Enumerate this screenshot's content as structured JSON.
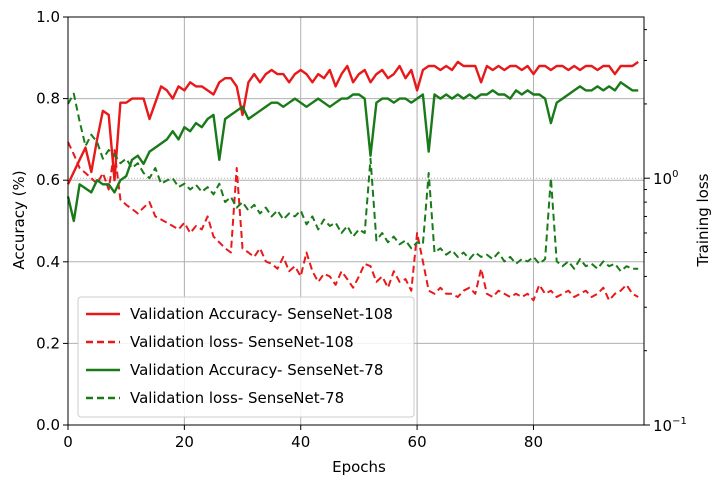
{
  "chart_data": {
    "type": "line",
    "xlabel": "Epochs",
    "ylabel": "Accuracy (%)",
    "y2label": "Training loss",
    "xlim": [
      0,
      99
    ],
    "ylim": [
      0.0,
      1.0
    ],
    "y2lim": [
      0.1,
      4.5
    ],
    "y2scale": "log",
    "grid": true,
    "legend_position": "lower-left",
    "x_ticks": [
      "0",
      "20",
      "40",
      "60",
      "80"
    ],
    "y_ticks": [
      "0.0",
      "0.2",
      "0.4",
      "0.6",
      "0.8",
      "1.0"
    ],
    "y2_ticks": [
      {
        "value": 0.1,
        "base": "10",
        "exp": "−1"
      },
      {
        "value": 1,
        "base": "10",
        "exp": "0"
      }
    ],
    "series": [
      {
        "name": "Validation Accuracy- SenseNet-108",
        "color": "#e8191b",
        "style": "solid",
        "axis": "left",
        "values": [
          0.59,
          0.62,
          0.65,
          0.68,
          0.62,
          0.7,
          0.77,
          0.76,
          0.6,
          0.79,
          0.79,
          0.8,
          0.8,
          0.8,
          0.75,
          0.79,
          0.83,
          0.82,
          0.8,
          0.83,
          0.82,
          0.84,
          0.83,
          0.83,
          0.82,
          0.81,
          0.84,
          0.85,
          0.85,
          0.83,
          0.76,
          0.84,
          0.86,
          0.84,
          0.86,
          0.87,
          0.86,
          0.86,
          0.84,
          0.86,
          0.87,
          0.86,
          0.84,
          0.86,
          0.85,
          0.87,
          0.83,
          0.86,
          0.88,
          0.84,
          0.86,
          0.87,
          0.84,
          0.86,
          0.87,
          0.85,
          0.86,
          0.88,
          0.85,
          0.87,
          0.82,
          0.87,
          0.88,
          0.88,
          0.87,
          0.88,
          0.87,
          0.89,
          0.88,
          0.88,
          0.88,
          0.84,
          0.88,
          0.87,
          0.88,
          0.87,
          0.88,
          0.88,
          0.87,
          0.88,
          0.86,
          0.88,
          0.88,
          0.87,
          0.88,
          0.88,
          0.87,
          0.88,
          0.87,
          0.88,
          0.88,
          0.87,
          0.88,
          0.88,
          0.86,
          0.88,
          0.88,
          0.88,
          0.89
        ]
      },
      {
        "name": "Validation loss- SenseNet-108",
        "color": "#e8191b",
        "style": "dashed",
        "axis": "right",
        "values": [
          1.4,
          1.25,
          1.1,
          1.05,
          1.0,
          0.95,
          1.05,
          0.9,
          1.3,
          0.82,
          0.78,
          0.75,
          0.72,
          0.76,
          0.8,
          0.7,
          0.68,
          0.66,
          0.64,
          0.62,
          0.66,
          0.6,
          0.64,
          0.62,
          0.7,
          0.58,
          0.55,
          0.52,
          0.5,
          1.1,
          0.52,
          0.5,
          0.48,
          0.52,
          0.46,
          0.45,
          0.43,
          0.48,
          0.42,
          0.44,
          0.4,
          0.5,
          0.42,
          0.38,
          0.41,
          0.4,
          0.37,
          0.42,
          0.39,
          0.36,
          0.4,
          0.45,
          0.44,
          0.38,
          0.4,
          0.36,
          0.42,
          0.38,
          0.39,
          0.35,
          0.6,
          0.46,
          0.35,
          0.34,
          0.36,
          0.34,
          0.34,
          0.33,
          0.35,
          0.36,
          0.34,
          0.43,
          0.34,
          0.33,
          0.35,
          0.34,
          0.33,
          0.34,
          0.33,
          0.34,
          0.32,
          0.37,
          0.34,
          0.35,
          0.33,
          0.34,
          0.35,
          0.33,
          0.34,
          0.35,
          0.33,
          0.34,
          0.36,
          0.32,
          0.34,
          0.35,
          0.37,
          0.34,
          0.33
        ]
      },
      {
        "name": "Validation Accuracy- SenseNet-78",
        "color": "#1a7a1a",
        "style": "solid",
        "axis": "left",
        "values": [
          0.56,
          0.5,
          0.59,
          0.58,
          0.57,
          0.6,
          0.59,
          0.59,
          0.57,
          0.6,
          0.61,
          0.65,
          0.66,
          0.64,
          0.67,
          0.68,
          0.69,
          0.7,
          0.72,
          0.7,
          0.73,
          0.72,
          0.74,
          0.73,
          0.75,
          0.76,
          0.65,
          0.75,
          0.76,
          0.77,
          0.78,
          0.75,
          0.76,
          0.77,
          0.78,
          0.79,
          0.79,
          0.78,
          0.79,
          0.8,
          0.79,
          0.78,
          0.79,
          0.8,
          0.79,
          0.78,
          0.79,
          0.8,
          0.8,
          0.81,
          0.81,
          0.8,
          0.66,
          0.79,
          0.8,
          0.8,
          0.79,
          0.8,
          0.8,
          0.79,
          0.8,
          0.81,
          0.67,
          0.81,
          0.8,
          0.81,
          0.8,
          0.81,
          0.8,
          0.81,
          0.8,
          0.81,
          0.81,
          0.82,
          0.81,
          0.81,
          0.8,
          0.82,
          0.81,
          0.82,
          0.81,
          0.81,
          0.8,
          0.74,
          0.79,
          0.8,
          0.81,
          0.82,
          0.83,
          0.82,
          0.82,
          0.83,
          0.82,
          0.83,
          0.82,
          0.84,
          0.83,
          0.82,
          0.82
        ]
      },
      {
        "name": "Validation loss- SenseNet-78",
        "color": "#1a7a1a",
        "style": "dashed",
        "axis": "right",
        "values": [
          2.0,
          2.2,
          1.7,
          1.35,
          1.5,
          1.4,
          1.2,
          1.3,
          1.25,
          1.15,
          1.2,
          1.1,
          1.15,
          1.05,
          1.0,
          1.1,
          0.95,
          0.98,
          1.0,
          0.92,
          0.95,
          0.9,
          0.94,
          0.88,
          0.92,
          0.86,
          0.95,
          0.8,
          0.84,
          0.76,
          0.8,
          0.74,
          0.78,
          0.72,
          0.76,
          0.7,
          0.74,
          0.68,
          0.72,
          0.7,
          0.74,
          0.65,
          0.7,
          0.62,
          0.68,
          0.64,
          0.66,
          0.6,
          0.64,
          0.58,
          0.62,
          0.6,
          1.2,
          0.56,
          0.6,
          0.55,
          0.58,
          0.54,
          0.56,
          0.52,
          0.55,
          0.54,
          1.05,
          0.5,
          0.52,
          0.49,
          0.51,
          0.48,
          0.5,
          0.47,
          0.5,
          0.48,
          0.49,
          0.47,
          0.5,
          0.46,
          0.48,
          0.45,
          0.47,
          0.46,
          0.48,
          0.45,
          0.47,
          1.0,
          0.46,
          0.44,
          0.46,
          0.43,
          0.47,
          0.44,
          0.45,
          0.43,
          0.46,
          0.44,
          0.45,
          0.42,
          0.44,
          0.43,
          0.43
        ]
      }
    ]
  }
}
